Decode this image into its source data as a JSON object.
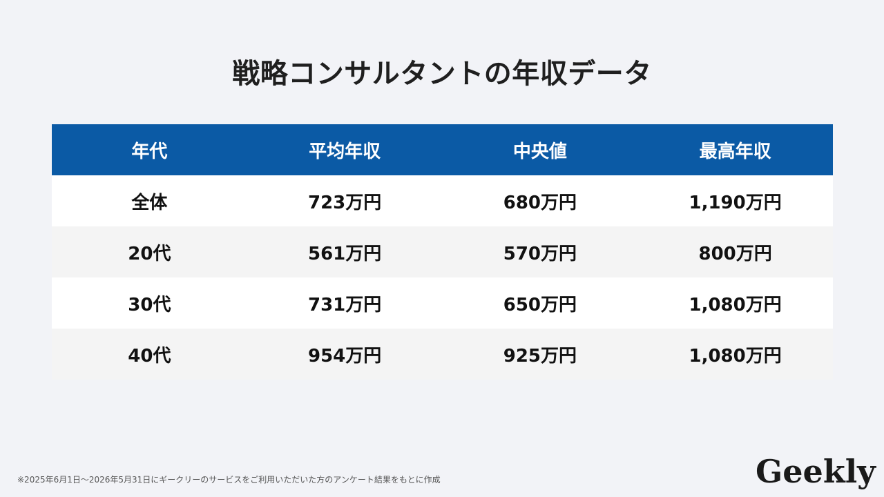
{
  "title": "戦略コンサルタントの年収データ",
  "chart_data": {
    "type": "table",
    "title": "戦略コンサルタントの年収データ",
    "columns": [
      "年代",
      "平均年収",
      "中央値",
      "最高年収"
    ],
    "rows": [
      [
        "全体",
        "723万円",
        "680万円",
        "1,190万円"
      ],
      [
        "20代",
        "561万円",
        "570万円",
        "800万円"
      ],
      [
        "30代",
        "731万円",
        "650万円",
        "1,080万円"
      ],
      [
        "40代",
        "954万円",
        "925万円",
        "1,080万円"
      ]
    ],
    "colors": {
      "header_bg": "#0b5aa5",
      "header_text": "#ffffff",
      "row_alt": "#f4f4f4"
    }
  },
  "footnote": "※2025年6月1日〜2026年5月31日にギークリーのサービスをご利用いただいた方のアンケート結果をもとに作成",
  "logo": "Geekly"
}
